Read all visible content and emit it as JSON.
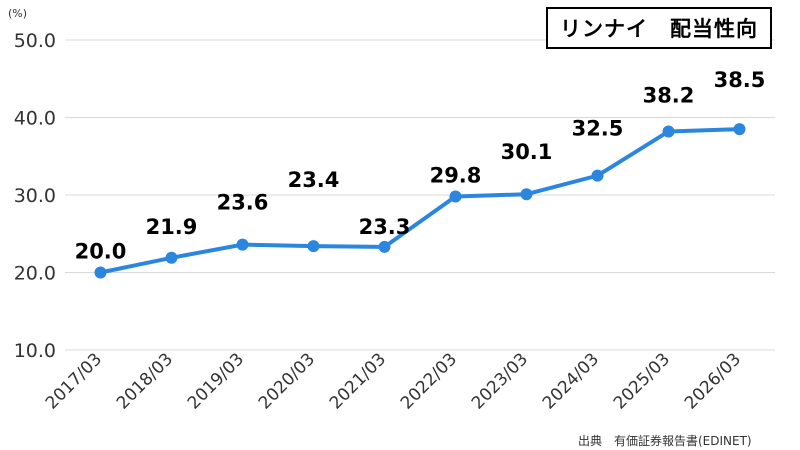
{
  "chart_data": {
    "type": "line",
    "title": "リンナイ　配当性向",
    "unit_label": "(%)",
    "source": "出典　有価証券報告書(EDINET)",
    "categories": [
      "2017/03",
      "2018/03",
      "2019/03",
      "2020/03",
      "2021/03",
      "2022/03",
      "2023/03",
      "2024/03",
      "2025/03",
      "2026/03"
    ],
    "series": [
      {
        "values": [
          20.0,
          21.9,
          23.6,
          23.4,
          23.3,
          29.8,
          30.1,
          32.5,
          38.2,
          38.5
        ]
      }
    ],
    "data_labels": [
      "20.0",
      "21.9",
      "23.6",
      "23.4",
      "23.3",
      "29.8",
      "30.1",
      "32.5",
      "38.2",
      "38.5"
    ],
    "y_ticks": [
      "10.0",
      "20.0",
      "30.0",
      "40.0",
      "50.0"
    ],
    "ylim": [
      10,
      50
    ],
    "grid": true,
    "line_color": "#2b86e0"
  }
}
